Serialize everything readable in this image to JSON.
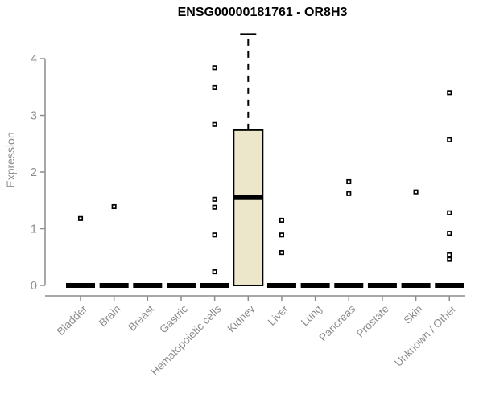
{
  "chart_data": {
    "type": "boxplot",
    "title": "ENSG00000181761 - OR8H3",
    "ylabel": "Expression",
    "xlabel": "",
    "ylim": [
      0,
      4.6
    ],
    "yticks": [
      0,
      1,
      2,
      3,
      4
    ],
    "grid": false,
    "legend": "none",
    "x_label_rotation_deg": 45,
    "categories": [
      "Bladder",
      "Brain",
      "Breast",
      "Gastric",
      "Hematopoietic cells",
      "Kidney",
      "Liver",
      "Lung",
      "Pancreas",
      "Prostate",
      "Skin",
      "Unknown / Other"
    ],
    "series": [
      {
        "name": "Bladder",
        "q1": 0,
        "median": 0,
        "q3": 0,
        "whisker_low": 0,
        "whisker_high": 0,
        "outliers": [
          1.18
        ]
      },
      {
        "name": "Brain",
        "q1": 0,
        "median": 0,
        "q3": 0,
        "whisker_low": 0,
        "whisker_high": 0,
        "outliers": [
          1.39
        ]
      },
      {
        "name": "Breast",
        "q1": 0,
        "median": 0,
        "q3": 0,
        "whisker_low": 0,
        "whisker_high": 0,
        "outliers": []
      },
      {
        "name": "Gastric",
        "q1": 0,
        "median": 0,
        "q3": 0,
        "whisker_low": 0,
        "whisker_high": 0,
        "outliers": []
      },
      {
        "name": "Hematopoietic cells",
        "q1": 0,
        "median": 0,
        "q3": 0,
        "whisker_low": 0,
        "whisker_high": 0,
        "outliers": [
          3.84,
          3.49,
          2.84,
          1.52,
          1.38,
          0.89,
          0.24
        ]
      },
      {
        "name": "Kidney",
        "q1": 0,
        "median": 1.55,
        "q3": 2.74,
        "whisker_low": 0,
        "whisker_high": 4.43,
        "outliers": []
      },
      {
        "name": "Liver",
        "q1": 0,
        "median": 0,
        "q3": 0,
        "whisker_low": 0,
        "whisker_high": 0,
        "outliers": [
          1.15,
          0.89,
          0.58
        ]
      },
      {
        "name": "Lung",
        "q1": 0,
        "median": 0,
        "q3": 0,
        "whisker_low": 0,
        "whisker_high": 0,
        "outliers": []
      },
      {
        "name": "Pancreas",
        "q1": 0,
        "median": 0,
        "q3": 0,
        "whisker_low": 0,
        "whisker_high": 0,
        "outliers": [
          1.83,
          1.62
        ]
      },
      {
        "name": "Prostate",
        "q1": 0,
        "median": 0,
        "q3": 0,
        "whisker_low": 0,
        "whisker_high": 0,
        "outliers": []
      },
      {
        "name": "Skin",
        "q1": 0,
        "median": 0,
        "q3": 0,
        "whisker_low": 0,
        "whisker_high": 0,
        "outliers": [
          1.65
        ]
      },
      {
        "name": "Unknown / Other",
        "q1": 0,
        "median": 0,
        "q3": 0,
        "whisker_low": 0,
        "whisker_high": 0,
        "outliers": [
          3.4,
          2.57,
          1.28,
          0.92,
          0.54,
          0.46
        ]
      }
    ],
    "colors": {
      "box_fill": "#ECE7CA",
      "box_stroke": "#000000",
      "median": "#000000",
      "whisker": "#000000",
      "outlier_stroke": "#000000",
      "outlier_fill": "#FFFFFF",
      "axis": "#8C8C8C",
      "tick_label": "#8C8C8C",
      "title": "#000000",
      "background": "#FFFFFF"
    }
  }
}
